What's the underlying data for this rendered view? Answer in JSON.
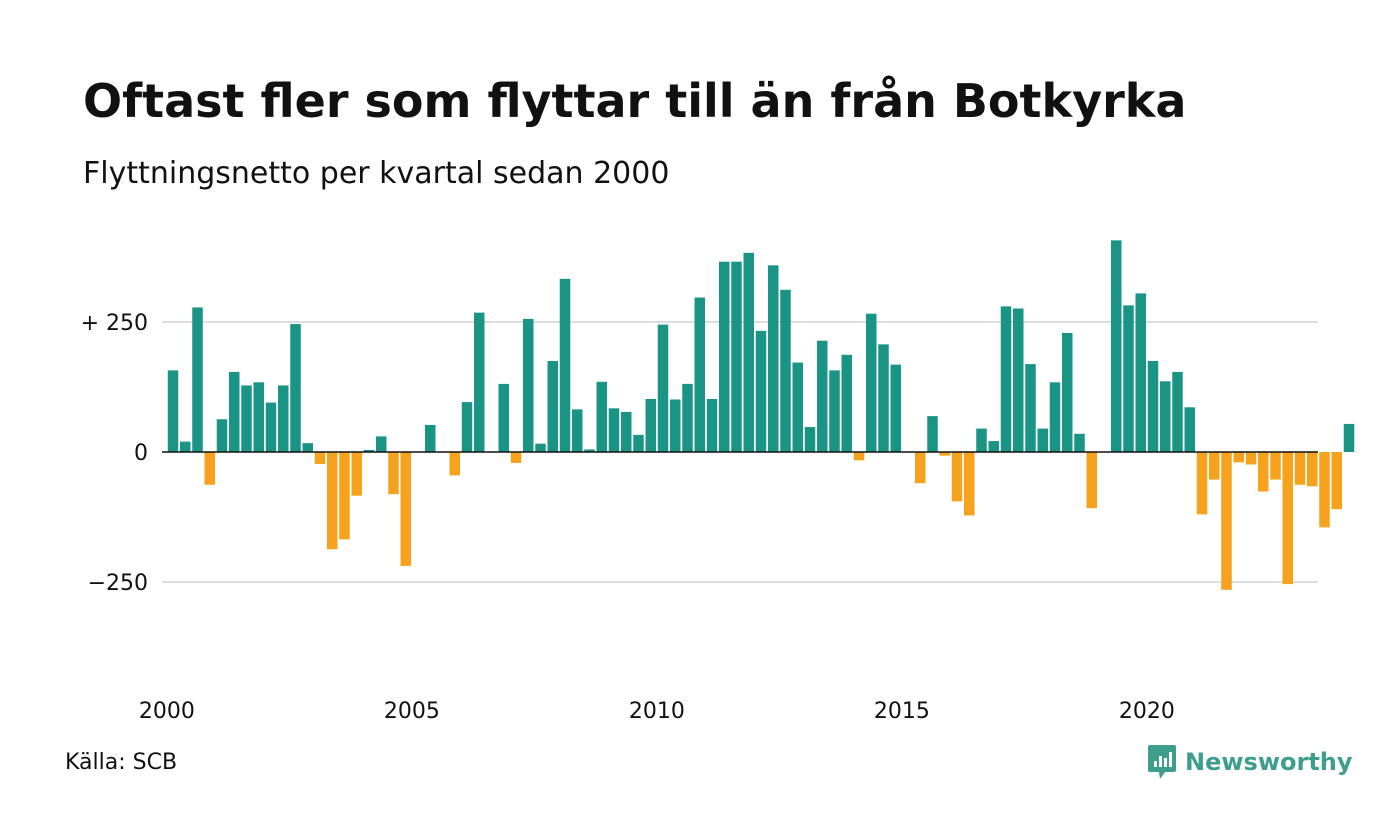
{
  "header": {
    "title": "Oftast fler som flyttar till än från Botkyrka",
    "subtitle": "Flyttningsnetto per kvartal sedan 2000"
  },
  "footer": {
    "source": "Källa: SCB",
    "brand": "Newsworthy"
  },
  "colors": {
    "positive": "#1a9485",
    "negative": "#f6a21c",
    "gridline": "#dddddd",
    "zero_line": "#111111",
    "brand": "#3d9e8d"
  },
  "icons": {
    "logo": "chat-bubble-bar-chart-icon"
  },
  "chart_data": {
    "type": "bar",
    "title": "Oftast fler som flyttar till än från Botkyrka",
    "subtitle": "Flyttningsnetto per kvartal sedan 2000",
    "xlabel": "",
    "ylabel": "",
    "x_start": "2000 Q1",
    "x_ticks": [
      2000,
      2005,
      2010,
      2015,
      2020
    ],
    "y_ticks": [
      {
        "value": 250,
        "label": "+ 250"
      },
      {
        "value": 0,
        "label": "0"
      },
      {
        "value": -250,
        "label": "−250"
      }
    ],
    "ylim": [
      -400,
      420
    ],
    "grid": true,
    "legend": "none",
    "values": [
      157,
      20,
      278,
      -63,
      63,
      154,
      128,
      134,
      95,
      128,
      246,
      17,
      -23,
      -187,
      -168,
      -84,
      4,
      30,
      -81,
      -219,
      0,
      52,
      0,
      -45,
      96,
      268,
      0,
      131,
      -21,
      256,
      16,
      175,
      333,
      82,
      5,
      135,
      84,
      77,
      33,
      102,
      245,
      101,
      131,
      297,
      102,
      366,
      366,
      383,
      233,
      359,
      312,
      172,
      48,
      214,
      157,
      187,
      -16,
      266,
      207,
      168,
      0,
      -60,
      69,
      -7,
      -95,
      -122,
      45,
      21,
      280,
      276,
      169,
      45,
      134,
      229,
      35,
      -108,
      0,
      407,
      282,
      305,
      175,
      136,
      154,
      86,
      -120,
      -53,
      -265,
      -20,
      -24,
      -76,
      -53,
      -254,
      -63,
      -66,
      -145,
      -110,
      54
    ]
  }
}
